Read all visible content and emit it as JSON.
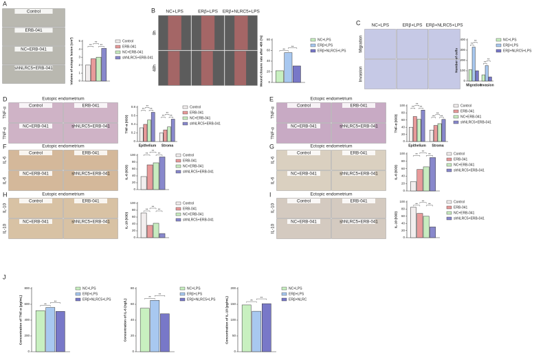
{
  "panels": [
    {
      "letter": "A",
      "cell_labels": [
        "Control",
        "ERB-041",
        "NC+ERB-041",
        "shNLRC5+ERB-041"
      ]
    },
    {
      "letter": "B",
      "col_labels": [
        "NC+LPS",
        "ERβ+LPS",
        "ERβ+NLRC5+LPS"
      ],
      "row_labels": [
        "0h",
        "48h"
      ]
    },
    {
      "letter": "C",
      "col_labels": [
        "NC+LPS",
        "ERβ+LPS",
        "ERβ+NLRC5+LPS"
      ],
      "row_labels": [
        "Migration",
        "Invasion"
      ]
    },
    {
      "letter": "D",
      "header": "Eutopic endometrium",
      "cell_labels": [
        "Control",
        "ERB-041",
        "NC+ERB-041",
        "shNLRC5+ERB-041"
      ],
      "row_labels": [
        "TNF-α",
        "TNF-α"
      ]
    },
    {
      "letter": "E",
      "header": "Ectopic endometrium",
      "cell_labels": [
        "Control",
        "ERB-041",
        "NC+ERB-041",
        "shNLRC5+ERB-041"
      ],
      "row_labels": [
        "TNF-α",
        "TNF-α"
      ]
    },
    {
      "letter": "F",
      "header": "Eutopic endometrium",
      "cell_labels": [
        "Control",
        "ERB-041",
        "NC+ERB-041",
        "shNLRC5+ERB-041"
      ],
      "row_labels": [
        "IL-6",
        "IL-6"
      ]
    },
    {
      "letter": "G",
      "header": "Ectopic endometrium",
      "cell_labels": [
        "Control",
        "ERB-041",
        "NC+ERB-041",
        "shNLRC5+ERB-041"
      ],
      "row_labels": [
        "IL-6",
        "IL-6"
      ]
    },
    {
      "letter": "H",
      "header": "Eutopic endometrium",
      "cell_labels": [
        "Control",
        "ERB-041",
        "NC+ERB-041",
        "shNLRC5+ERB-041"
      ],
      "row_labels": [
        "IL-10",
        "IL-10"
      ]
    },
    {
      "letter": "I",
      "header": "Ectopic endometrium",
      "cell_labels": [
        "Control",
        "ERB-041",
        "NC+ERB-041",
        "shNLRC5+ERB-041"
      ],
      "row_labels": [
        "IL-10",
        "IL-10"
      ]
    },
    {
      "letter": "J"
    }
  ],
  "chart_data": [
    {
      "type": "bar",
      "ylabel": "Volume of ectopic lesion (cm³)",
      "ylim": [
        0,
        5
      ],
      "yticks": [
        0,
        1,
        2,
        3,
        4,
        5
      ],
      "annotations": [
        "**",
        "**",
        "**"
      ],
      "series": [
        {
          "name": "Control",
          "color": "#f2eeee",
          "values": [
            2
          ]
        },
        {
          "name": "ERB-041",
          "color": "#e89a9a",
          "values": [
            2.8
          ]
        },
        {
          "name": "NC+ERB-041",
          "color": "#c8ecc0",
          "values": [
            3
          ]
        },
        {
          "name": "shNLRC5+ERB-041",
          "color": "#8888cc",
          "values": [
            4.1
          ]
        }
      ]
    },
    {
      "type": "bar",
      "ylabel": "Wound closure rate after 48h (%)",
      "ylim": [
        0,
        80
      ],
      "yticks": [
        0,
        20,
        40,
        60,
        80
      ],
      "annotations": [
        "**",
        "**"
      ],
      "series": [
        {
          "name": "NC+LPS",
          "color": "#c8f0c0",
          "values": [
            22
          ]
        },
        {
          "name": "ERβ+LPS",
          "color": "#a8c8f0",
          "values": [
            56
          ]
        },
        {
          "name": "ERβ+NLRC5+LPS",
          "color": "#7878c8",
          "values": [
            31
          ]
        }
      ]
    },
    {
      "type": "bar",
      "ylabel": "Number of cells",
      "ylim": [
        0,
        400
      ],
      "yticks": [
        0,
        100,
        200,
        300,
        400
      ],
      "categories": [
        "Migration",
        "Invasion"
      ],
      "annotations": [
        "**",
        "**",
        "**",
        "**"
      ],
      "series": [
        {
          "name": "NC+LPS",
          "color": "#c8f0c0",
          "values": [
            110,
            60
          ]
        },
        {
          "name": "ERβ+LPS",
          "color": "#a8c8f0",
          "values": [
            330,
            150
          ]
        },
        {
          "name": "ERβ+NLRC5+LPS",
          "color": "#7878c8",
          "values": [
            100,
            40
          ]
        }
      ]
    },
    {
      "type": "bar",
      "ylabel": "TNF-α (IOD)",
      "ylim": [
        0,
        0.8
      ],
      "yticks": [
        0,
        0.2,
        0.4,
        0.6,
        0.8
      ],
      "categories": [
        "Epithelium",
        "Stroma"
      ],
      "annotations": [
        "**",
        "**",
        "**",
        "**",
        "**",
        "**"
      ],
      "series": [
        {
          "name": "Control",
          "color": "#f2eeee",
          "values": [
            0.32,
            0.2
          ]
        },
        {
          "name": "ERB-041",
          "color": "#e89a9a",
          "values": [
            0.4,
            0.27
          ]
        },
        {
          "name": "NC+ERB-041",
          "color": "#c8ecc0",
          "values": [
            0.5,
            0.34
          ]
        },
        {
          "name": "shNLRC5+ERB-041",
          "color": "#8888cc",
          "values": [
            0.68,
            0.52
          ]
        }
      ]
    },
    {
      "type": "bar",
      "ylabel": "TNF-α (IOD)",
      "ylim": [
        0,
        100
      ],
      "yticks": [
        0,
        20,
        40,
        60,
        80,
        100
      ],
      "categories": [
        "Epithelium",
        "Stroma"
      ],
      "annotations": [
        "**",
        "**",
        "**",
        "**",
        "**",
        "**"
      ],
      "series": [
        {
          "name": "Control",
          "color": "#f2eeee",
          "values": [
            40,
            32
          ]
        },
        {
          "name": "ERB-041",
          "color": "#e89a9a",
          "values": [
            70,
            45
          ]
        },
        {
          "name": "NC+ERB-041",
          "color": "#c8ecc0",
          "values": [
            62,
            50
          ]
        },
        {
          "name": "shNLRC5+ERB-041",
          "color": "#8888cc",
          "values": [
            88,
            62
          ]
        }
      ]
    },
    {
      "type": "bar",
      "ylabel": "IL-6 (IOD)",
      "ylim": [
        0,
        100
      ],
      "yticks": [
        0,
        20,
        40,
        60,
        80,
        100
      ],
      "annotations": [
        "**",
        "**",
        "**"
      ],
      "series": [
        {
          "name": "Control",
          "color": "#f2eeee",
          "values": [
            38
          ]
        },
        {
          "name": "ERB-041",
          "color": "#e89a9a",
          "values": [
            72
          ]
        },
        {
          "name": "NC+ERB-041",
          "color": "#c8ecc0",
          "values": [
            78
          ]
        },
        {
          "name": "shNLRC5+ERB-041",
          "color": "#8888cc",
          "values": [
            95
          ]
        }
      ]
    },
    {
      "type": "bar",
      "ylabel": "IL-6 (IOD)",
      "ylim": [
        0,
        100
      ],
      "yticks": [
        0,
        20,
        40,
        60,
        80,
        100
      ],
      "annotations": [
        "**",
        "**",
        "**"
      ],
      "series": [
        {
          "name": "Control",
          "color": "#f2eeee",
          "values": [
            25
          ]
        },
        {
          "name": "ERB-041",
          "color": "#e89a9a",
          "values": [
            58
          ]
        },
        {
          "name": "NC+ERB-041",
          "color": "#c8ecc0",
          "values": [
            65
          ]
        },
        {
          "name": "shNLRC5+ERB-041",
          "color": "#8888cc",
          "values": [
            90
          ]
        }
      ]
    },
    {
      "type": "bar",
      "ylabel": "IL-10 (IOD)",
      "ylim": [
        0,
        100
      ],
      "yticks": [
        0,
        20,
        40,
        60,
        80,
        100
      ],
      "annotations": [
        "**",
        "**",
        "**"
      ],
      "series": [
        {
          "name": "Control",
          "color": "#f2eeee",
          "values": [
            72
          ]
        },
        {
          "name": "ERB-041",
          "color": "#e89a9a",
          "values": [
            36
          ]
        },
        {
          "name": "NC+ERB-041",
          "color": "#c8ecc0",
          "values": [
            42
          ]
        },
        {
          "name": "shNLRC5+ERB-041",
          "color": "#8888cc",
          "values": [
            12
          ]
        }
      ]
    },
    {
      "type": "bar",
      "ylabel": "IL-10 (IOD)",
      "ylim": [
        0,
        100
      ],
      "yticks": [
        0,
        20,
        40,
        60,
        80,
        100
      ],
      "annotations": [
        "**",
        "**",
        "**"
      ],
      "series": [
        {
          "name": "Control",
          "color": "#f2eeee",
          "values": [
            85
          ]
        },
        {
          "name": "ERB-041",
          "color": "#e89a9a",
          "values": [
            68
          ]
        },
        {
          "name": "NC+ERB-041",
          "color": "#c8ecc0",
          "values": [
            60
          ]
        },
        {
          "name": "shNLRC5+ERB-041",
          "color": "#8888cc",
          "values": [
            30
          ]
        }
      ]
    },
    {
      "type": "bar",
      "ylabel": "Concentration of TNF-α (pg/mL)",
      "ylim": [
        0,
        800
      ],
      "yticks": [
        0,
        200,
        400,
        600,
        800
      ],
      "annotations": [
        "**",
        "**"
      ],
      "series": [
        {
          "name": "NC+LPS",
          "color": "#c8f0c0",
          "values": [
            520
          ]
        },
        {
          "name": "ERβ+LPS",
          "color": "#a8c8f0",
          "values": [
            560
          ]
        },
        {
          "name": "ERβ+NLRC5+LPS",
          "color": "#7878c8",
          "values": [
            510
          ]
        }
      ]
    },
    {
      "type": "bar",
      "ylabel": "Concentration of IL-6 (ng/L)",
      "ylim": [
        0,
        80
      ],
      "yticks": [
        0,
        20,
        40,
        60,
        80
      ],
      "annotations": [
        "**",
        "**"
      ],
      "series": [
        {
          "name": "NC+LPS",
          "color": "#c8f0c0",
          "values": [
            55
          ]
        },
        {
          "name": "ERβ+LPS",
          "color": "#a8c8f0",
          "values": [
            65
          ]
        },
        {
          "name": "ERβ+NLRC5+LPS",
          "color": "#7878c8",
          "values": [
            48
          ]
        }
      ]
    },
    {
      "type": "bar",
      "ylabel": "Concentration of IL-10 (pg/mL)",
      "ylim": [
        0,
        200
      ],
      "yticks": [
        0,
        50,
        100,
        150,
        200
      ],
      "annotations": [
        "**",
        "**"
      ],
      "series": [
        {
          "name": "NC+LPS",
          "color": "#c8f0c0",
          "values": [
            148
          ]
        },
        {
          "name": "ERβ+LPS",
          "color": "#a8c8f0",
          "values": [
            128
          ]
        },
        {
          "name": "ERβ+NLRC",
          "color": "#7878c8",
          "values": [
            152
          ]
        }
      ]
    }
  ]
}
